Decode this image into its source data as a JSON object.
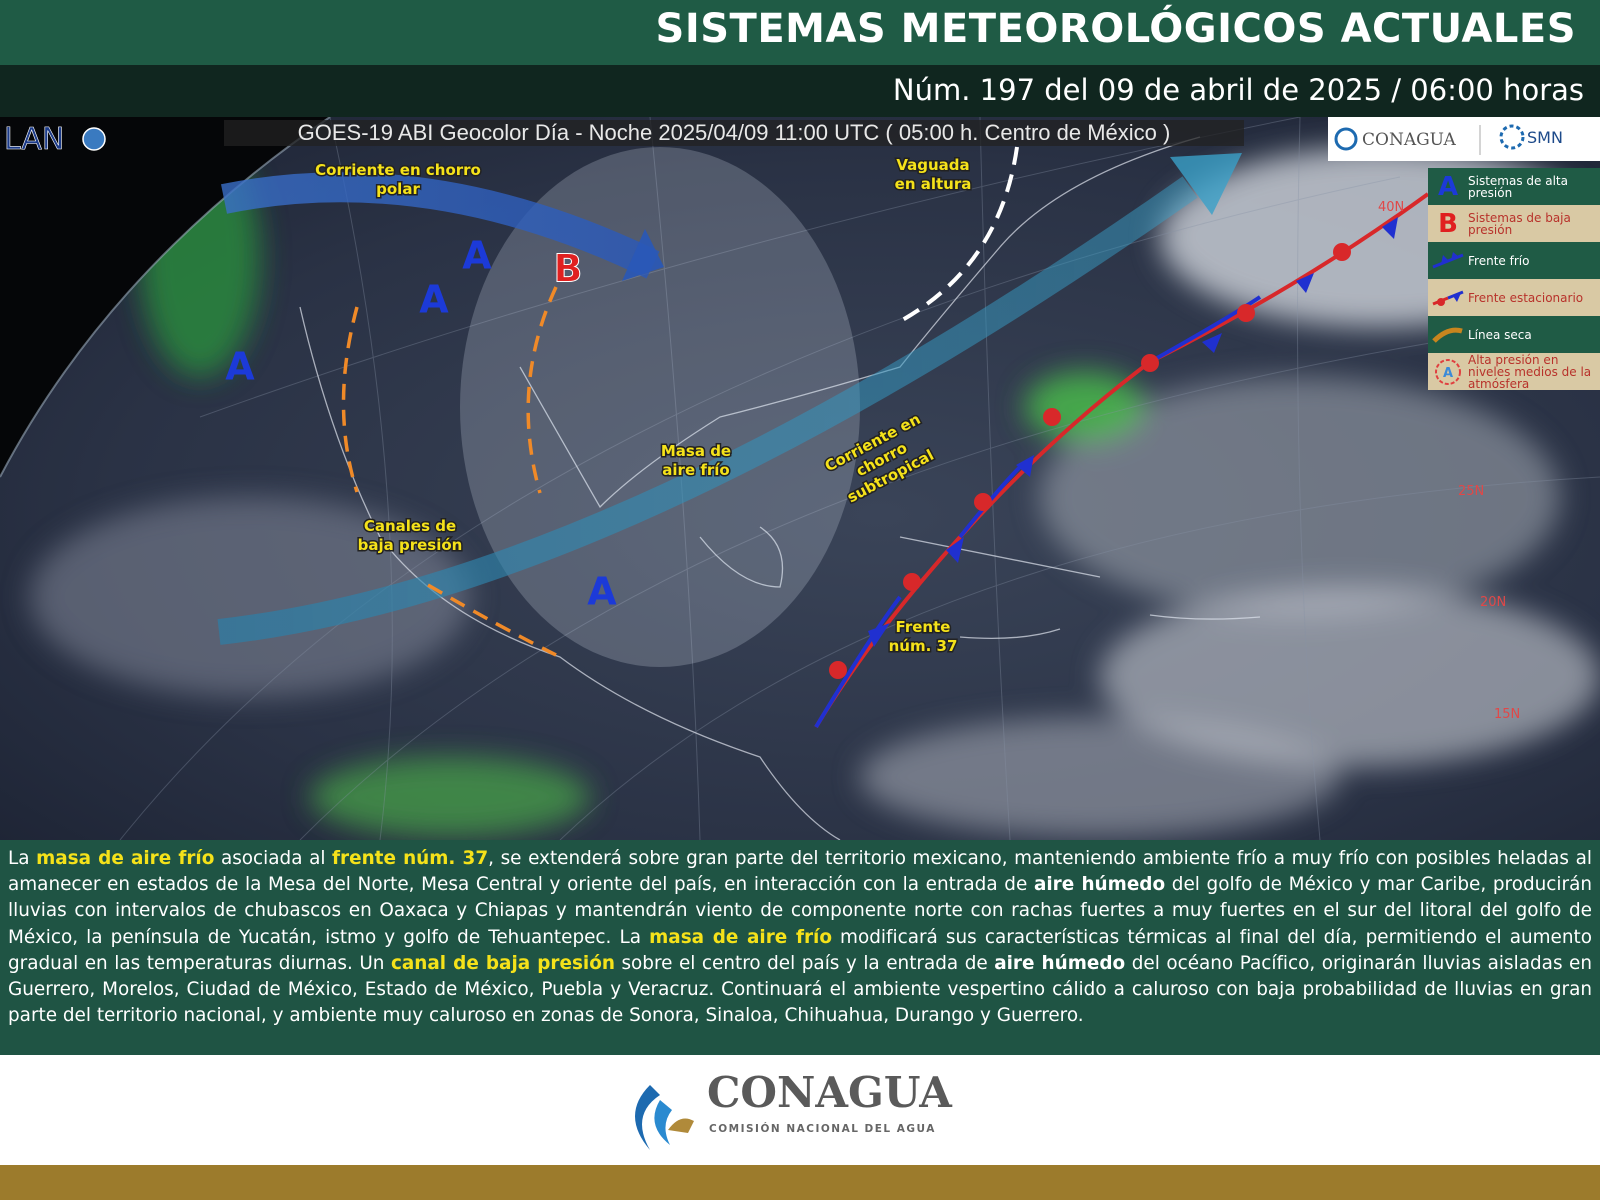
{
  "header": {
    "title": "SISTEMAS METEOROLÓGICOS ACTUALES",
    "subtitle": "Núm. 197 del 09 de abril de 2025 / 06:00 horas"
  },
  "map": {
    "source_logo": "LAN",
    "caption": "GOES-19 ABI Geocolor Día - Noche 2025/04/09 11:00 UTC ( 05:00 h. Centro de México )",
    "top_logos": [
      "CONAGUA",
      "SMN"
    ],
    "labels": [
      "Corriente en chorro polar",
      "Vaguada en altura",
      "Masa de aire frío",
      "Corriente en chorro subtropical",
      "Canales de baja presión",
      "Frente núm. 37"
    ],
    "pressure_systems": [
      "A",
      "A",
      "A",
      "A",
      "B"
    ],
    "latitudes": [
      "40N",
      "25N",
      "20N",
      "15N"
    ],
    "legend": [
      "Sistemas de alta presión",
      "Sistemas de baja presión",
      "Frente frío",
      "Frente estacionario",
      "Línea seca",
      "Alta presión en niveles medios de la atmósfera"
    ],
    "legend_letters": [
      "A",
      "B"
    ]
  },
  "forecast": {
    "segments": [
      {
        "text": "La ",
        "style": "plain"
      },
      {
        "text": "masa de aire frío",
        "style": "highlight"
      },
      {
        "text": " asociada al ",
        "style": "plain"
      },
      {
        "text": "frente núm. 37",
        "style": "highlight"
      },
      {
        "text": ", se extenderá sobre gran parte del territorio mexicano, manteniendo ambiente frío a muy frío con posibles heladas al amanecer en estados de la Mesa del Norte, Mesa Central y oriente del país, en interacción con la entrada de ",
        "style": "plain"
      },
      {
        "text": "aire húmedo",
        "style": "bold"
      },
      {
        "text": " del golfo de México y mar Caribe, producirán lluvias con intervalos de chubascos en Oaxaca y Chiapas y mantendrán viento de componente norte con rachas fuertes a muy fuertes en el sur del litoral del golfo de México, la península de Yucatán, istmo y golfo de Tehuantepec. La ",
        "style": "plain"
      },
      {
        "text": "masa de aire frío",
        "style": "highlight"
      },
      {
        "text": " modificará sus características térmicas al final del día, permitiendo el aumento gradual en las temperaturas diurnas. Un ",
        "style": "plain"
      },
      {
        "text": "canal de baja presión",
        "style": "highlight"
      },
      {
        "text": " sobre el centro del país y la entrada de ",
        "style": "plain"
      },
      {
        "text": "aire húmedo",
        "style": "bold"
      },
      {
        "text": " del océano Pacífico, originarán lluvias aisladas en Guerrero, Morelos, Ciudad de México, Estado de México, Puebla y Veracruz. Continuará el ambiente vespertino cálido a caluroso con baja probabilidad de lluvias en gran parte del territorio nacional, y ambiente muy caluroso en zonas de Sonora, Sinaloa, Chihuahua, Durango y Guerrero.",
        "style": "plain"
      }
    ]
  },
  "footer": {
    "logo": "CONAGUA",
    "logo_subtitle": "COMISIÓN NACIONAL DEL AGUA"
  }
}
